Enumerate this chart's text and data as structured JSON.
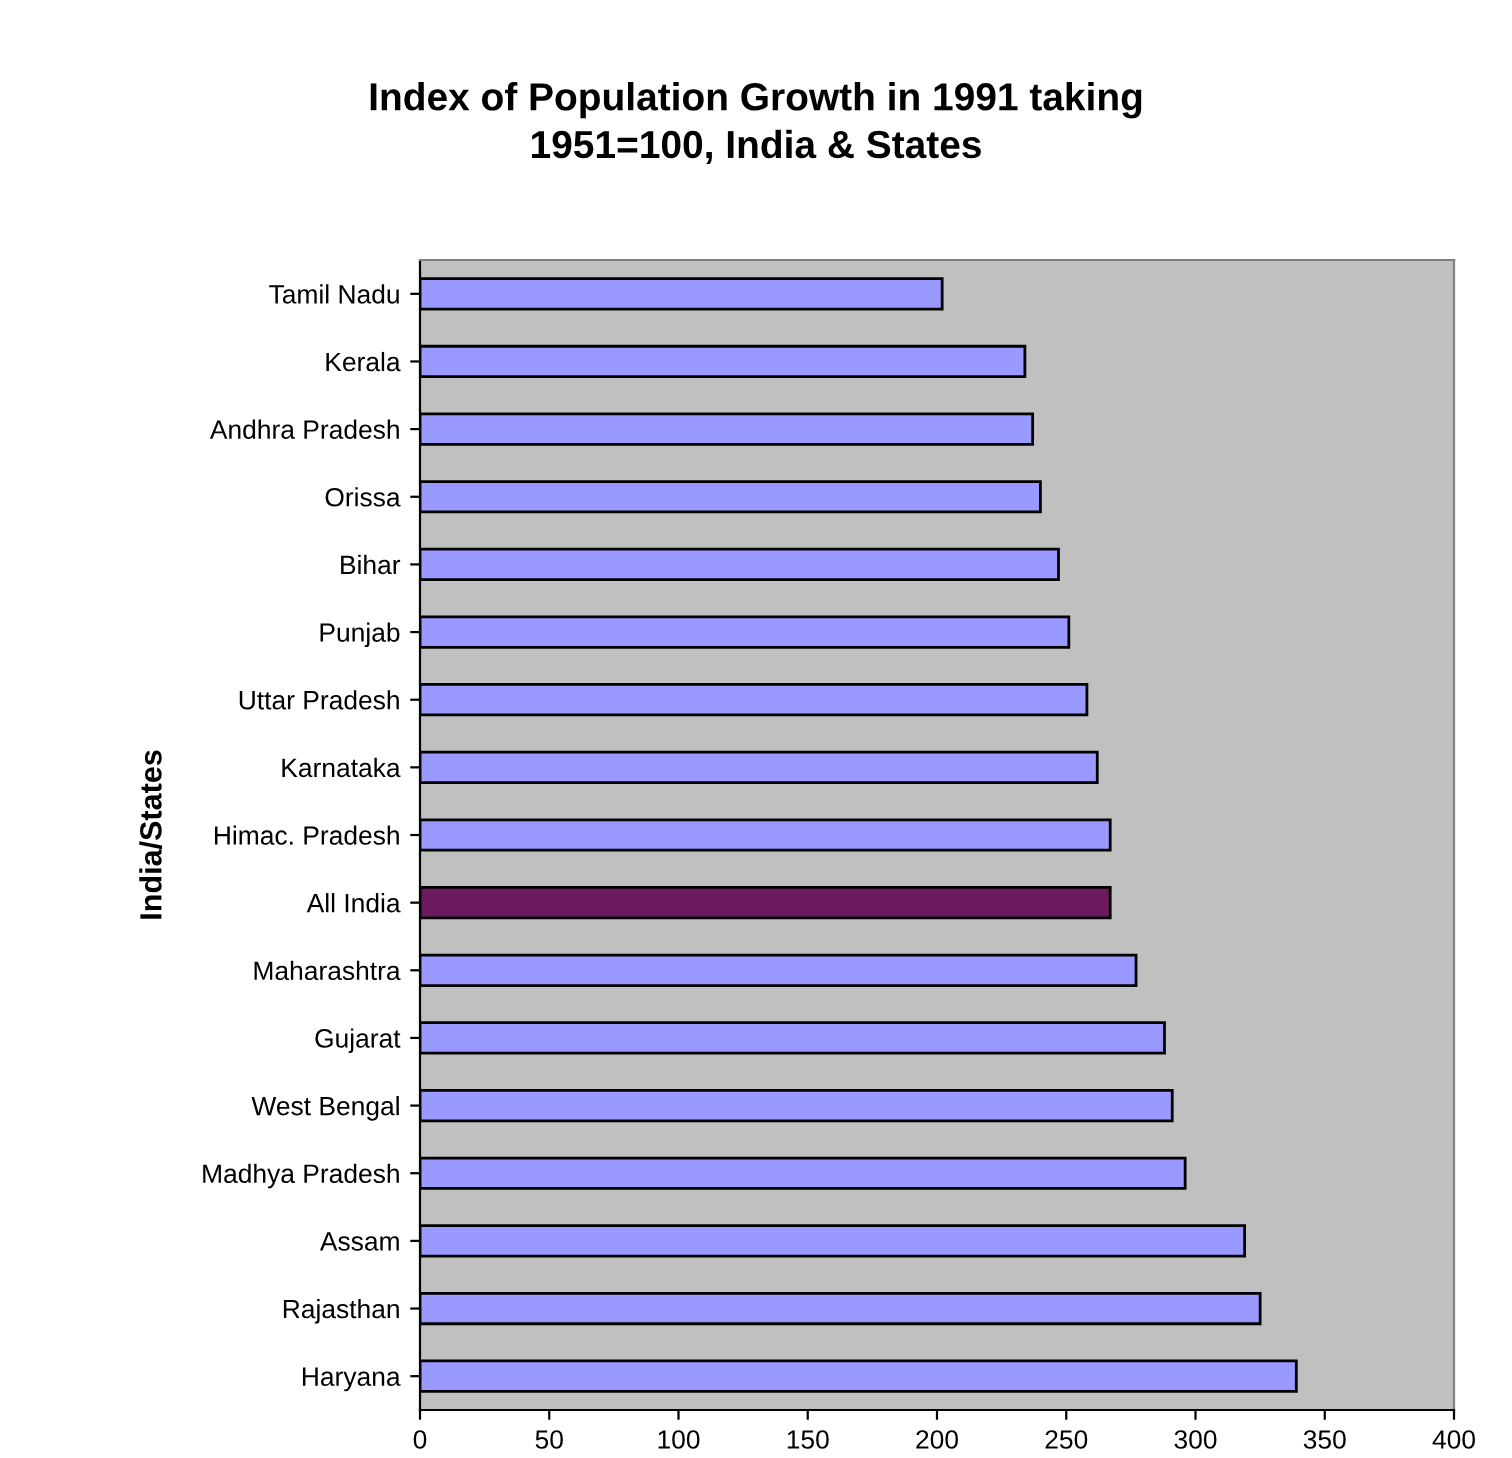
{
  "chart_data": {
    "type": "bar",
    "orientation": "horizontal",
    "title": "Index of Population Growth in 1991 taking\n1951=100, India & States",
    "ylabel": "India/States",
    "categories": [
      "Tamil Nadu",
      "Kerala",
      "Andhra Pradesh",
      "Orissa",
      "Bihar",
      "Punjab",
      "Uttar Pradesh",
      "Karnataka",
      "Himac. Pradesh",
      "All India",
      "Maharashtra",
      "Gujarat",
      "West Bengal",
      "Madhya Pradesh",
      "Assam",
      "Rajasthan",
      "Haryana"
    ],
    "values": [
      202,
      234,
      237,
      240,
      247,
      251,
      258,
      262,
      267,
      267,
      277,
      288,
      291,
      296,
      319,
      325,
      339
    ],
    "colors": [
      "#9999ff",
      "#9999ff",
      "#9999ff",
      "#9999ff",
      "#9999ff",
      "#9999ff",
      "#9999ff",
      "#9999ff",
      "#9999ff",
      "#6b1a60",
      "#9999ff",
      "#9999ff",
      "#9999ff",
      "#9999ff",
      "#9999ff",
      "#9999ff",
      "#9999ff"
    ],
    "xlim": [
      0,
      400
    ],
    "xticks": [
      0,
      50,
      100,
      150,
      200,
      250,
      300,
      350,
      400
    ],
    "grid": false,
    "legend": false
  }
}
